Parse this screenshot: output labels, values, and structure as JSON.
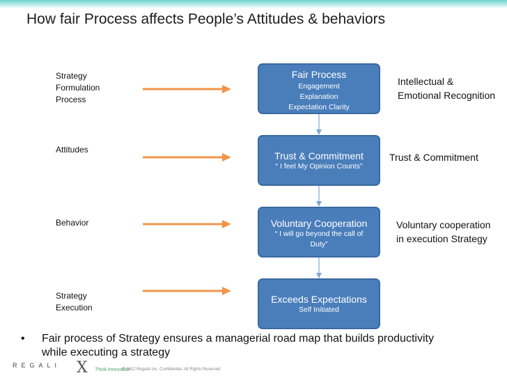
{
  "slide": {
    "title": "How fair Process affects People’s Attitudes & behaviors"
  },
  "left_labels": [
    "Strategy\nFormulation\nProcess",
    "Attitudes",
    "Behavior",
    "Strategy\nExecution"
  ],
  "boxes": [
    {
      "head": "Fair Process",
      "sub": "Engagement\nExplanation\nExpectation Clarity"
    },
    {
      "head": "Trust & Commitment",
      "sub": "“ I feel My Opinion Counts”"
    },
    {
      "head": "Voluntary Cooperation",
      "sub": "“ I will go beyond the call of\nDuty”"
    },
    {
      "head": "Exceeds Expectations",
      "sub": "Self Initiated"
    }
  ],
  "right_labels": [
    "Intellectual &\nEmotional Recognition",
    "Trust & Commitment",
    "Voluntary cooperation\nin execution Strategy"
  ],
  "bullet": {
    "marker": "•",
    "text": "Fair process of Strategy ensures a managerial road map that builds productivity while executing a strategy"
  },
  "footer": {
    "logo_text": "REGALI",
    "logo_x": "X",
    "tagline": "Think Innovation",
    "copyright": "© 2012 Regalix Inc. Confidential. All Rights Reserved"
  },
  "colors": {
    "box_fill": "#4a7ebb",
    "box_border": "#3a6aa0",
    "arrow": "#f0954a",
    "connector": "#7fa7d6",
    "top_bar": "#6fd3cf"
  }
}
